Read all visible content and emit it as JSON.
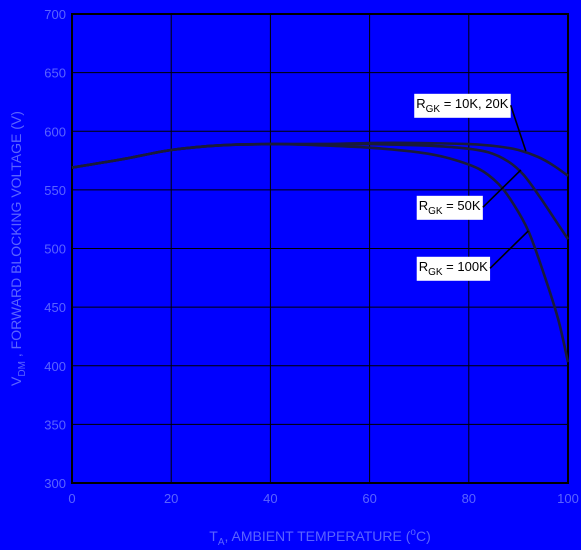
{
  "chart_data": {
    "type": "line",
    "xlim": [
      0,
      100
    ],
    "ylim": [
      300,
      700
    ],
    "x_ticks": [
      0,
      20,
      40,
      60,
      80,
      100
    ],
    "y_ticks": [
      300,
      350,
      400,
      450,
      500,
      550,
      600,
      650,
      700
    ],
    "x_tick_labels": [
      "0",
      "20",
      "40",
      "60",
      "80",
      "100"
    ],
    "y_tick_labels": [
      "300",
      "350",
      "400",
      "450",
      "500",
      "550",
      "600",
      "650",
      "700"
    ],
    "grid": true,
    "xlabel": {
      "main": "T",
      "sub": "A",
      "mid": ", AMBIENT TEMPERATURE (",
      "sup": "o",
      "tail": "C)"
    },
    "ylabel": {
      "main": "V",
      "sub": "DM",
      "tail": " , FORWARD BLOCKING VOLTAGE (V)"
    },
    "series": [
      {
        "points": [
          [
            0,
            569
          ],
          [
            10,
            576
          ],
          [
            20,
            584
          ],
          [
            30,
            588
          ],
          [
            40,
            589
          ],
          [
            50,
            589
          ],
          [
            60,
            590
          ],
          [
            70,
            590
          ],
          [
            80,
            589
          ],
          [
            86,
            587
          ],
          [
            90,
            584
          ],
          [
            94,
            578
          ],
          [
            97,
            571
          ],
          [
            100,
            562
          ]
        ]
      },
      {
        "points": [
          [
            0,
            569
          ],
          [
            10,
            576
          ],
          [
            20,
            584
          ],
          [
            30,
            588
          ],
          [
            40,
            589
          ],
          [
            50,
            589
          ],
          [
            60,
            589
          ],
          [
            70,
            588
          ],
          [
            78,
            586
          ],
          [
            84,
            582
          ],
          [
            88,
            574
          ],
          [
            91,
            563
          ],
          [
            94,
            546
          ],
          [
            97,
            527
          ],
          [
            100,
            508
          ]
        ]
      },
      {
        "points": [
          [
            0,
            569
          ],
          [
            10,
            576
          ],
          [
            20,
            584
          ],
          [
            30,
            588
          ],
          [
            40,
            589
          ],
          [
            50,
            588
          ],
          [
            60,
            586
          ],
          [
            70,
            582
          ],
          [
            76,
            577
          ],
          [
            82,
            568
          ],
          [
            86,
            555
          ],
          [
            89,
            538
          ],
          [
            92,
            515
          ],
          [
            95,
            480
          ],
          [
            98,
            440
          ],
          [
            100,
            403
          ]
        ]
      }
    ],
    "annotations": [
      {
        "text_main": "R",
        "text_sub": "GK",
        "text_tail": " = 10K, 20K",
        "anchor": [
          69,
          620
        ],
        "point_to": [
          91.5,
          583
        ]
      },
      {
        "text_main": "R",
        "text_sub": "GK",
        "text_tail": " = 50K",
        "anchor": [
          69.5,
          533
        ],
        "point_to": [
          90.5,
          567
        ]
      },
      {
        "text_main": "R",
        "text_sub": "GK",
        "text_tail": " = 100K",
        "anchor": [
          69.5,
          481
        ],
        "point_to": [
          92,
          515
        ]
      }
    ],
    "colors": {
      "background": "#0000ff",
      "grid": "#000000",
      "series": "#1a1a3a",
      "tick_label": "#5a63ff",
      "axis_label": "#5a63ff",
      "annotation_bg": "#ffffff",
      "annotation_text": "#000000"
    }
  }
}
